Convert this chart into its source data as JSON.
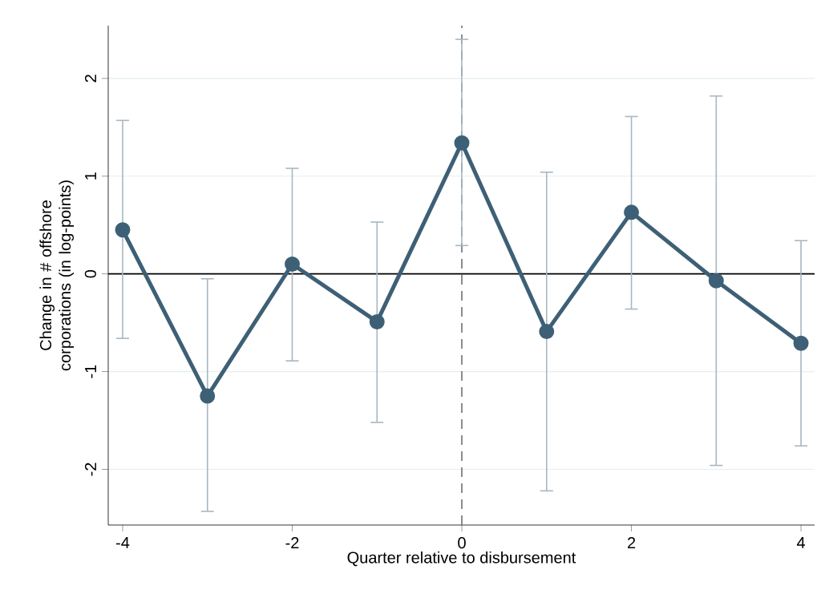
{
  "chart_data": {
    "type": "line",
    "xlabel": "Quarter relative to disbursement",
    "ylabel": "Change in # offshore corporations (in log-points)",
    "x": [
      -4,
      -3,
      -2,
      -1,
      0,
      1,
      2,
      3,
      4
    ],
    "series": [
      {
        "color": "#3e6076",
        "values": [
          0.45,
          -1.25,
          0.1,
          -0.49,
          1.34,
          -0.59,
          0.63,
          -0.07,
          -0.71
        ],
        "errors": [
          [
            -0.66,
            1.57
          ],
          [
            -2.43,
            -0.05
          ],
          [
            -0.89,
            1.08
          ],
          [
            -1.52,
            0.53
          ],
          [
            0.29,
            2.4
          ],
          [
            -2.22,
            1.04
          ],
          [
            -0.36,
            1.61
          ],
          [
            -1.96,
            1.82
          ],
          [
            -1.76,
            0.34
          ]
        ]
      }
    ],
    "xlim": [
      -4.17,
      4.16
    ],
    "ylim": [
      -2.57,
      2.54
    ],
    "xticks": [
      -4,
      -2,
      0,
      2,
      4
    ],
    "yticks": [
      -2,
      -1,
      0,
      1,
      2
    ],
    "grid": "y",
    "marker": "circle",
    "line_style": "solid",
    "ref_lines": [
      {
        "axis": "y",
        "value": 0,
        "color": "#000000",
        "line_style": "solid"
      },
      {
        "axis": "x",
        "value": 0,
        "color": "#707070",
        "line_style": "dashed"
      }
    ]
  }
}
